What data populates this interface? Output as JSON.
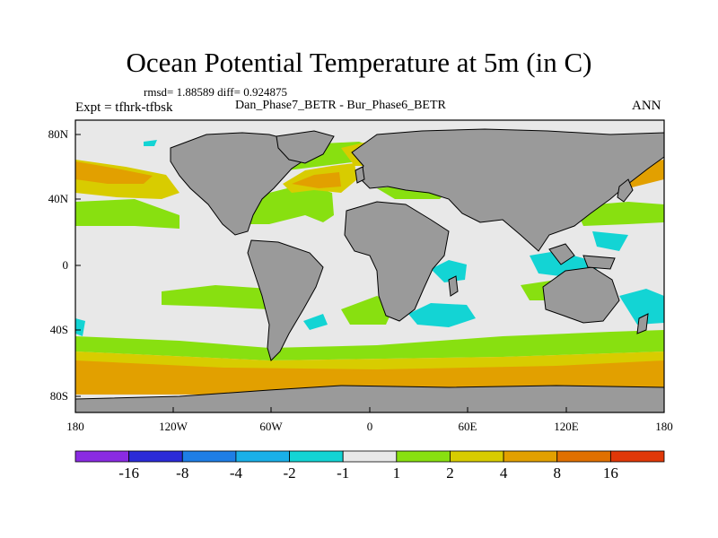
{
  "title": "Ocean Potential Temperature at 5m (in C)",
  "stats_text": "rmsd= 1.88589 diff= 0.924875",
  "experiment": "Expt = tfhrk-tfbsk",
  "subtitle": "Dan_Phase7_BETR - Bur_Phase6_BETR",
  "season": "ANN",
  "y_axis_labels": [
    "80N",
    "40N",
    "0",
    "40S",
    "80S"
  ],
  "x_axis_labels": [
    "180",
    "120W",
    "60W",
    "0",
    "60E",
    "120E",
    "180"
  ],
  "colors": {
    "land": "#9a9a9a",
    "neutral": "#e8e8e8",
    "coast": "#000000"
  },
  "colorbar": {
    "colors": [
      "#8a2be2",
      "#2b2bd8",
      "#1e7ee6",
      "#19b0e8",
      "#13d4d4",
      "#e8e8e8",
      "#88e010",
      "#d8cc00",
      "#e2a000",
      "#e07000",
      "#e03808"
    ],
    "labels": [
      "-16",
      "-8",
      "-4",
      "-2",
      "-1",
      "1",
      "2",
      "4",
      "8",
      "16"
    ]
  }
}
